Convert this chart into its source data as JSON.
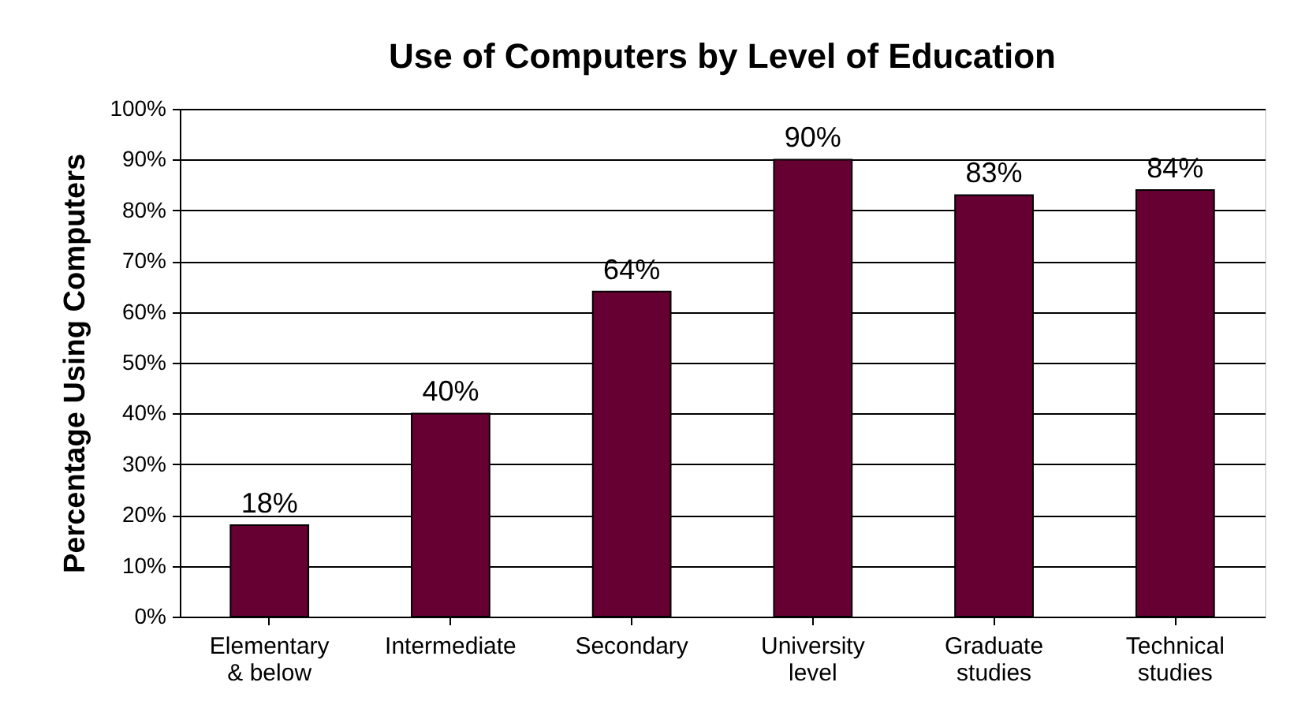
{
  "chart_data": {
    "type": "bar",
    "title": "Use of Computers by Level of Education",
    "ylabel": "Percentage Using Computers",
    "categories": [
      "Elementary\n& below",
      "Intermediate",
      "Secondary",
      "University\nlevel",
      "Graduate\nstudies",
      "Technical\nstudies"
    ],
    "values": [
      18,
      40,
      64,
      90,
      83,
      84
    ],
    "value_labels": [
      "18%",
      "40%",
      "64%",
      "90%",
      "83%",
      "84%"
    ],
    "color": "#660033",
    "ylim": [
      0,
      100
    ],
    "yticks": [
      {
        "value": 0,
        "label": "0%"
      },
      {
        "value": 10,
        "label": "10%"
      },
      {
        "value": 20,
        "label": "20%"
      },
      {
        "value": 30,
        "label": "30%"
      },
      {
        "value": 40,
        "label": "40%"
      },
      {
        "value": 50,
        "label": "50%"
      },
      {
        "value": 60,
        "label": "60%"
      },
      {
        "value": 70,
        "label": "70%"
      },
      {
        "value": 80,
        "label": "80%"
      },
      {
        "value": 90,
        "label": "90%"
      },
      {
        "value": 100,
        "label": "100%"
      }
    ],
    "grid": "y"
  }
}
